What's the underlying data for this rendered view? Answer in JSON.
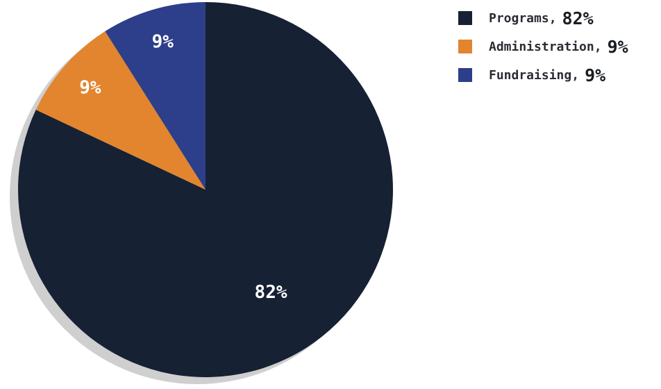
{
  "chart_data": {
    "type": "pie",
    "slices": [
      {
        "label": "Programs",
        "value": 82,
        "color": "#162133",
        "display": "82%",
        "legend_value": "82%"
      },
      {
        "label": "Administration",
        "value": 9,
        "color": "#e2852e",
        "display": "9%",
        "legend_value": "9%"
      },
      {
        "label": "Fundraising",
        "value": 9,
        "color": "#2d3f8a",
        "display": "9%",
        "legend_value": "9%"
      }
    ],
    "unit": "%",
    "start_angle": "12 o'clock",
    "direction": "clockwise",
    "legend_position": "top-right",
    "shadow_color": "#cfcfcf"
  },
  "legend": {
    "separator": ","
  }
}
